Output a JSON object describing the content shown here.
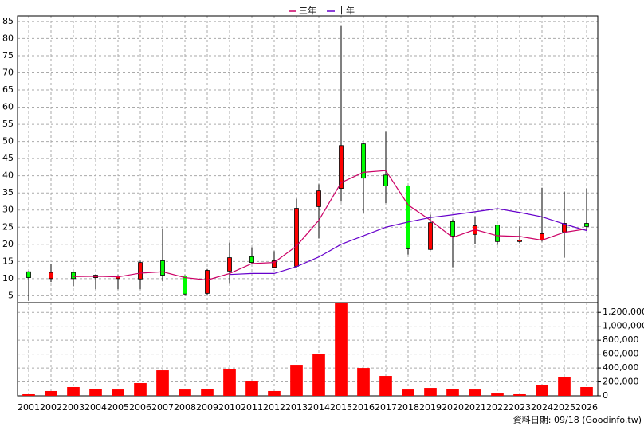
{
  "chart_data": {
    "type": "candlestick",
    "categories": [
      "2001",
      "2002",
      "2003",
      "2004",
      "2005",
      "2006",
      "2007",
      "2008",
      "2009",
      "2010",
      "2011",
      "2012",
      "2013",
      "2014",
      "2015",
      "2016",
      "2017",
      "2018",
      "2019",
      "2020",
      "2021",
      "2022",
      "2023",
      "2024",
      "2025",
      "2026"
    ],
    "open": [
      12,
      10,
      11.8,
      10.3,
      10,
      9.9,
      15.2,
      10.8,
      5.7,
      12.2,
      16.4,
      13.3,
      13.6,
      31,
      36.3,
      49.3,
      40.2,
      37,
      18.5,
      26.6,
      22.9,
      25.6,
      20.8,
      21.2,
      23.6,
      26.1
    ],
    "high": [
      12.2,
      14.3,
      12,
      11.2,
      11,
      15.2,
      24.5,
      11,
      12.8,
      20.5,
      19.1,
      18,
      33.3,
      37.5,
      83.6,
      49.5,
      52.8,
      37.2,
      28.7,
      27.3,
      28.2,
      25.8,
      25.2,
      36.5,
      35.4,
      36.3
    ],
    "low": [
      3.5,
      9,
      7.8,
      6.9,
      6.9,
      6.9,
      9.2,
      5,
      5,
      8.5,
      14.5,
      13,
      13.1,
      21.7,
      32.4,
      29.1,
      32,
      17,
      18.3,
      13.3,
      20,
      19.8,
      20.3,
      20.8,
      16.1,
      24
    ],
    "close": [
      10.3,
      11.8,
      10,
      11,
      10.8,
      14.7,
      11,
      5.5,
      12.4,
      16.1,
      14.7,
      15.2,
      30.5,
      35.6,
      48.8,
      39.3,
      37,
      18.7,
      26.3,
      22.4,
      25.4,
      20.8,
      21.2,
      23.1,
      26.1,
      25.2
    ],
    "rise_color": "#ff0000",
    "fall_color": "#00ff00",
    "lines": [
      {
        "name": "三年",
        "color": "#cc0066",
        "values": [
          null,
          null,
          10.6,
          10.7,
          10.5,
          11.6,
          12,
          10.3,
          9.6,
          11.5,
          14.4,
          14.7,
          19.5,
          27,
          38,
          41,
          41.5,
          31.5,
          27,
          22,
          24.3,
          22.5,
          22.3,
          21.2,
          23.5,
          24.5
        ]
      },
      {
        "name": "十年",
        "color": "#6600cc",
        "values": [
          null,
          null,
          null,
          null,
          null,
          null,
          null,
          null,
          null,
          11.2,
          11.5,
          11.5,
          13.5,
          16.3,
          20,
          22.5,
          25,
          26.5,
          27.8,
          28.6,
          29.5,
          30.4,
          29.3,
          28,
          25.9,
          24
        ]
      }
    ],
    "ylim": [
      3,
      86.6
    ],
    "yticks": [
      5,
      10,
      15,
      20,
      25,
      30,
      35,
      40,
      45,
      50,
      55,
      60,
      65,
      70,
      75,
      80,
      85
    ],
    "volume": {
      "color": "#ff0000",
      "values": [
        23000,
        69000,
        126000,
        103000,
        91000,
        183000,
        366000,
        91000,
        103000,
        389000,
        206000,
        69000,
        446000,
        606000,
        1340000,
        400000,
        286000,
        91000,
        114000,
        103000,
        91000,
        34000,
        23000,
        160000,
        274000,
        126000
      ],
      "ylim": [
        0,
        1340000
      ],
      "yticks": [
        {
          "value": 0,
          "label": "0"
        },
        {
          "value": 200000,
          "label": "200,000"
        },
        {
          "value": 400000,
          "label": "400,000"
        },
        {
          "value": 600000,
          "label": "600,000"
        },
        {
          "value": 800000,
          "label": "800,000"
        },
        {
          "value": 1000000,
          "label": "1,000,000"
        },
        {
          "value": 1200000,
          "label": "1,200,000"
        }
      ]
    },
    "grid": true,
    "legend": "top",
    "note": "資料日期: 09/18 (Goodinfo.tw)"
  }
}
